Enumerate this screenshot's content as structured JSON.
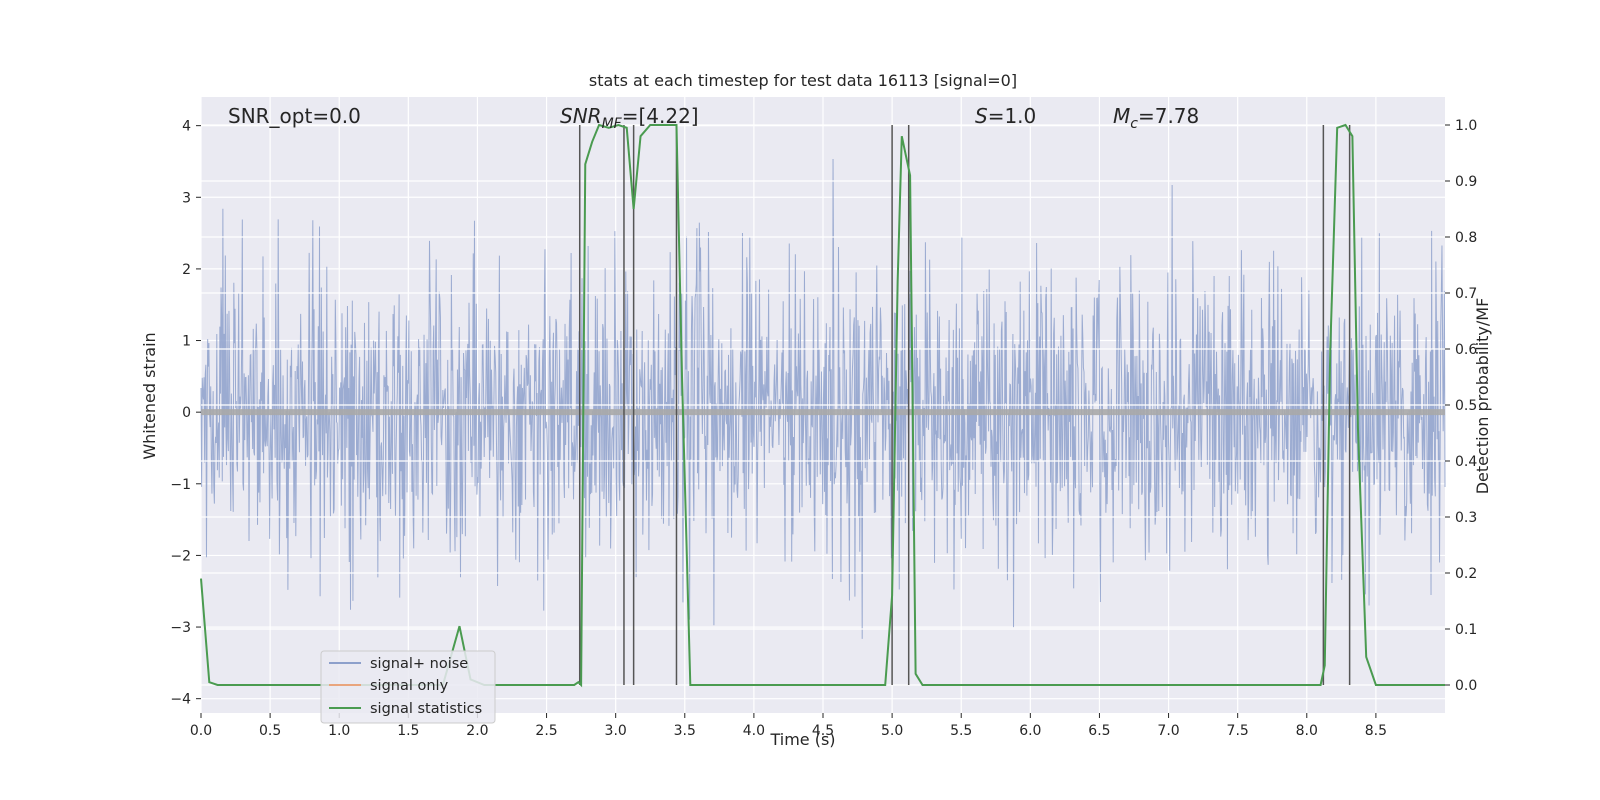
{
  "chart_data": {
    "type": "line",
    "title": "stats at each timestep for test data 16113 [signal=0]",
    "xlabel": "Time (s)",
    "ylabel_left": "Whitened strain",
    "ylabel_right": "Detection probability/MF",
    "xlim": [
      0.0,
      9.0
    ],
    "ylim_left": [
      -4.2,
      4.4
    ],
    "ylim_right": [
      -0.05,
      1.05
    ],
    "xticks": [
      "0.0",
      "0.5",
      "1.0",
      "1.5",
      "2.0",
      "2.5",
      "3.0",
      "3.5",
      "4.0",
      "4.5",
      "5.0",
      "5.5",
      "6.0",
      "6.5",
      "7.0",
      "7.5",
      "8.0",
      "8.5"
    ],
    "yticks_left": [
      "−4",
      "−3",
      "−2",
      "−1",
      "0",
      "1",
      "2",
      "3",
      "4"
    ],
    "yticks_right": [
      "0.0",
      "0.1",
      "0.2",
      "0.3",
      "0.4",
      "0.5",
      "0.6",
      "0.7",
      "0.8",
      "0.9",
      "1.0"
    ],
    "grid": true,
    "legend_placement": "lower-left",
    "annotations": {
      "snr_opt": "SNR_opt=0.0",
      "snr_mf_main": "SNR",
      "snr_mf_sub": "MF",
      "snr_mf_value": "=[4.22]",
      "s_main": "S",
      "s_value": "=1.0",
      "mc_main": "M",
      "mc_sub": "c",
      "mc_value": "=7.78"
    },
    "series": [
      {
        "name": "signal+ noise",
        "color": "#8da0cb",
        "axis": "left",
        "noise_std": 1.0,
        "t_start": 0.0,
        "t_end": 9.0,
        "samples": 2048
      },
      {
        "name": "signal only",
        "color": "#e9a57d",
        "axis": "left",
        "x": [
          0.0,
          9.0
        ],
        "y": [
          0.0,
          0.0
        ]
      },
      {
        "name": "signal statistics",
        "color": "#4a9b50",
        "axis": "right",
        "x": [
          0.0,
          0.06,
          0.12,
          0.5,
          1.0,
          1.5,
          1.75,
          1.87,
          1.95,
          2.05,
          2.3,
          2.7,
          2.73,
          2.75,
          2.78,
          2.83,
          2.88,
          2.95,
          3.02,
          3.08,
          3.13,
          3.18,
          3.25,
          3.35,
          3.44,
          3.48,
          3.54,
          3.6,
          4.0,
          4.5,
          4.95,
          5.0,
          5.04,
          5.07,
          5.13,
          5.17,
          5.22,
          5.3,
          6.0,
          7.0,
          8.0,
          8.1,
          8.13,
          8.17,
          8.22,
          8.28,
          8.33,
          8.37,
          8.43,
          8.5,
          9.0
        ],
        "y": [
          0.19,
          0.005,
          0.0,
          0.0,
          0.0,
          0.0,
          0.0,
          0.105,
          0.01,
          0.0,
          0.0,
          0.0,
          0.005,
          0.0,
          0.93,
          0.97,
          1.0,
          0.995,
          1.0,
          0.995,
          0.85,
          0.98,
          1.0,
          1.0,
          1.0,
          0.55,
          0.0,
          0.0,
          0.0,
          0.0,
          0.0,
          0.16,
          0.72,
          0.98,
          0.91,
          0.02,
          0.0,
          0.0,
          0.0,
          0.0,
          0.0,
          0.0,
          0.035,
          0.6,
          0.995,
          1.0,
          0.98,
          0.46,
          0.05,
          0.0,
          0.0
        ]
      }
    ],
    "vertical_lines": [
      2.74,
      3.06,
      3.13,
      3.44,
      5.0,
      5.12,
      8.12,
      8.31
    ]
  }
}
